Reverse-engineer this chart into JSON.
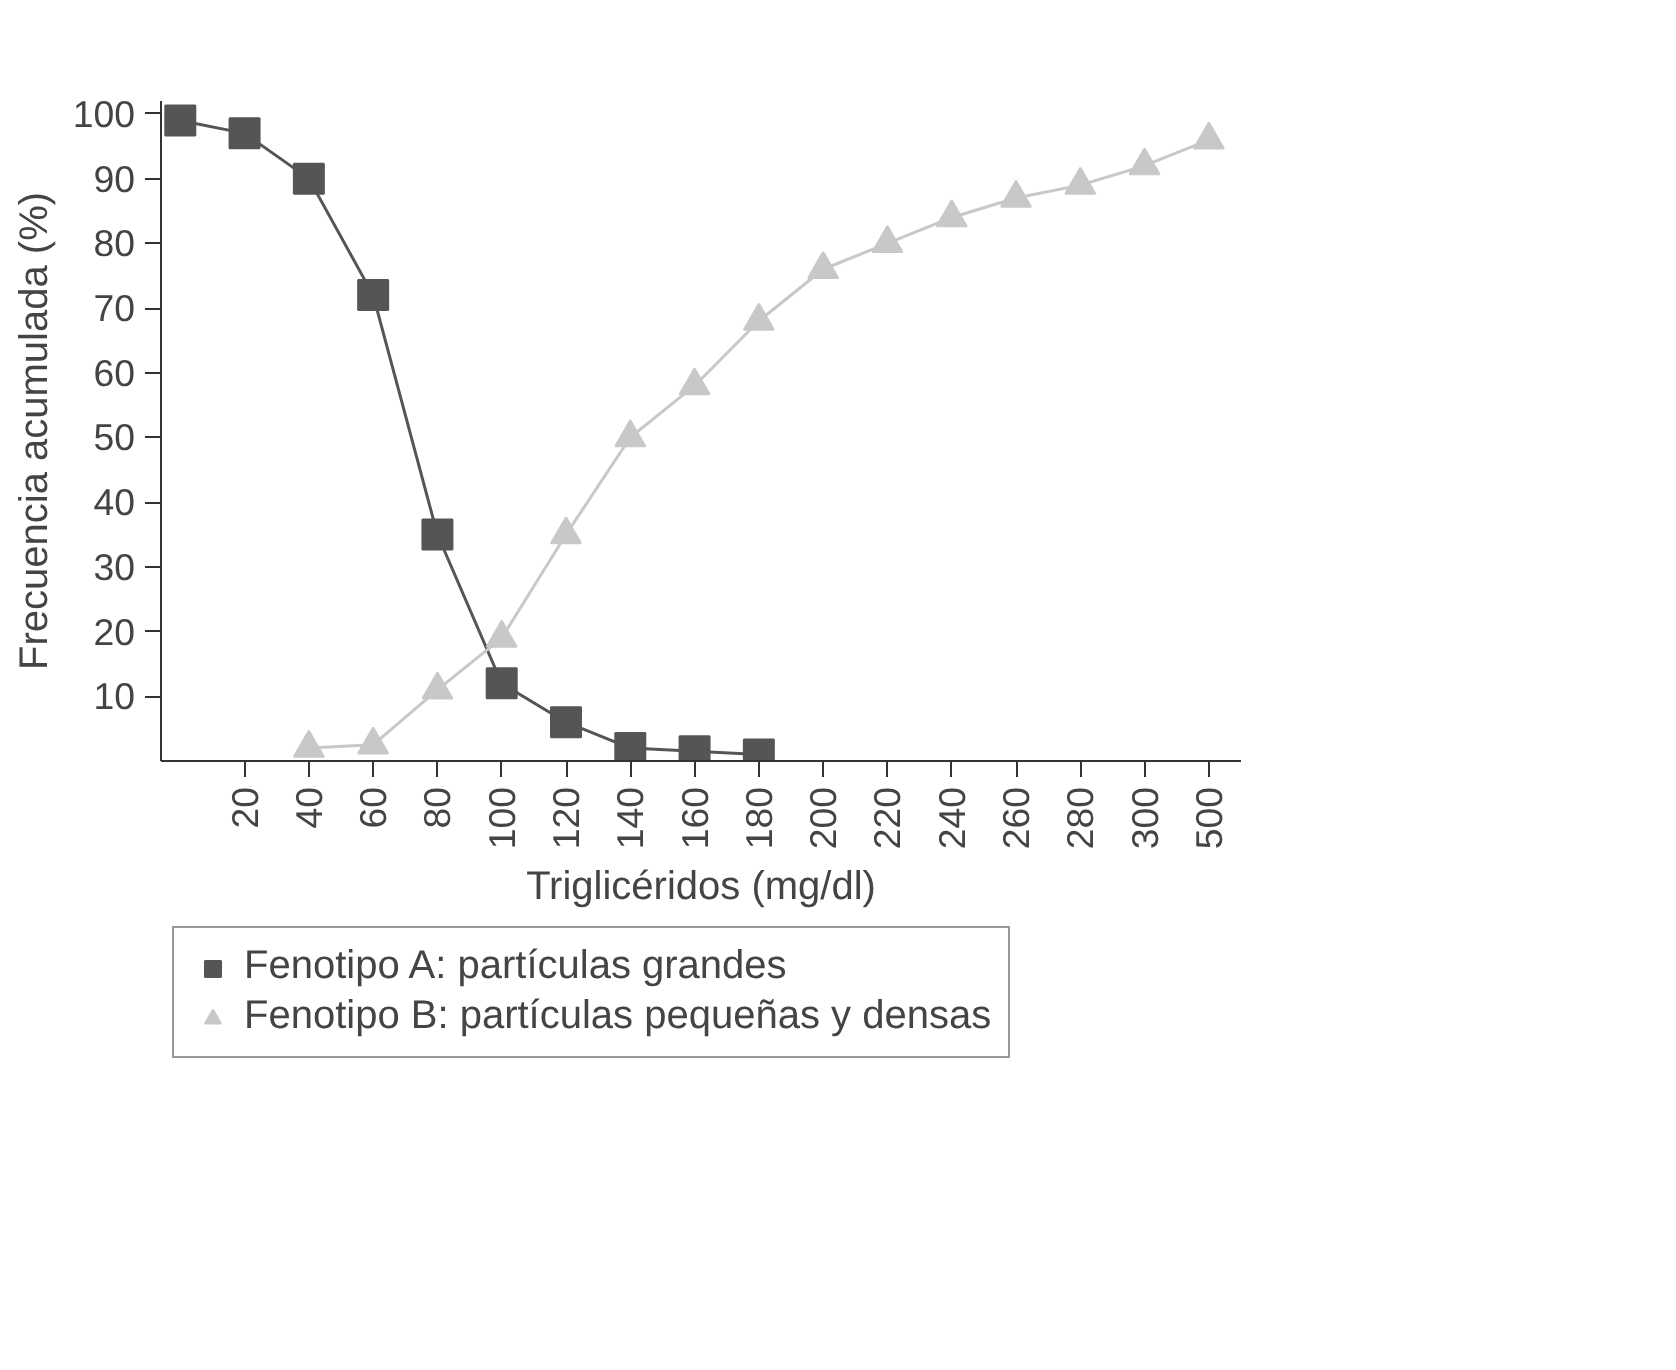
{
  "chart_data": {
    "type": "line",
    "xlabel": "Triglicéridos (mg/dl)",
    "ylabel": "Frecuencia acumulada (%)",
    "categories": [
      null,
      "20",
      "40",
      "60",
      "80",
      "100",
      "120",
      "140",
      "160",
      "180",
      "200",
      "220",
      "240",
      "260",
      "280",
      "300",
      "500"
    ],
    "series": [
      {
        "name": "Fenotipo A: partículas grandes",
        "color": "#555555",
        "marker": "square",
        "values": [
          99,
          97,
          90,
          72,
          35,
          12,
          6,
          2,
          1.5,
          1,
          null,
          null,
          null,
          null,
          null,
          null,
          null
        ]
      },
      {
        "name": "Fenotipo B: partículas pequeñas y densas",
        "color": "#c8c8c8",
        "marker": "triangle",
        "values": [
          null,
          null,
          2,
          2.5,
          11,
          19,
          35,
          50,
          58,
          68,
          76,
          80,
          84,
          87,
          89,
          92,
          96
        ]
      }
    ],
    "ylim": [
      0,
      102
    ],
    "yticks": [
      10,
      20,
      30,
      40,
      50,
      60,
      70,
      80,
      90,
      100
    ],
    "grid": false,
    "legend": "bottom"
  }
}
